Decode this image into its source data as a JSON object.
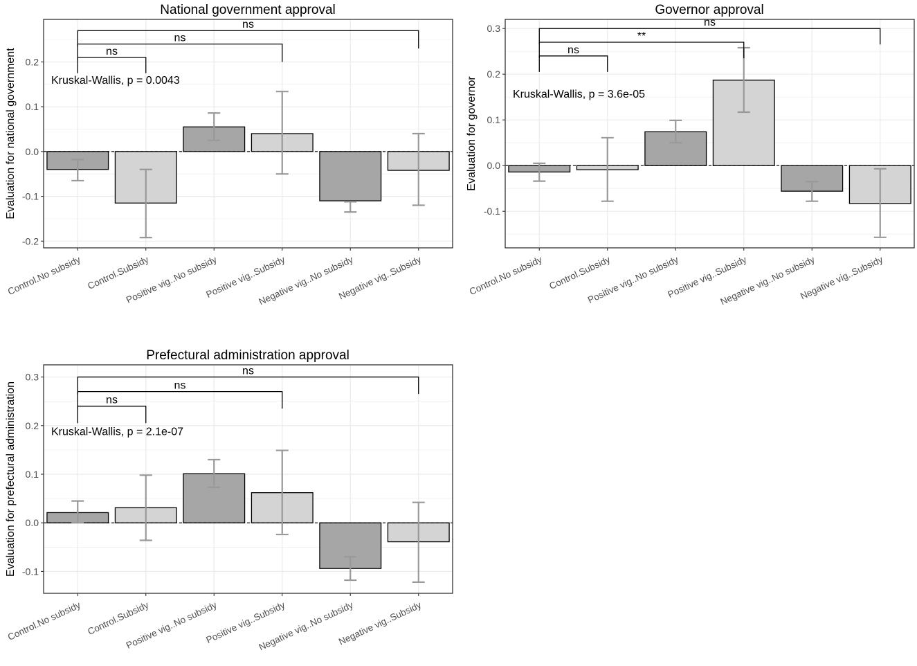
{
  "figure": {
    "colors": {
      "dark_bar": "#a6a6a6",
      "light_bar": "#d4d4d4",
      "error_bar": "#999999",
      "grid": "#ebebeb",
      "text": "#000000",
      "tick_text": "#4d4d4d"
    }
  },
  "chart_data": [
    {
      "type": "bar",
      "title": "National government approval",
      "ylabel": "Evaluation for national government",
      "xlabel": "",
      "categories": [
        "Control.No subsidy",
        "Control.Subsidy",
        "Positive vig..No subsidy",
        "Positive vig..Subsidy",
        "Negative vig..No subsidy",
        "Negative vig..Subsidy"
      ],
      "values": [
        -0.04,
        -0.115,
        0.055,
        0.04,
        -0.11,
        -0.042
      ],
      "error_low": [
        -0.065,
        -0.192,
        0.025,
        -0.05,
        -0.135,
        -0.12
      ],
      "error_high": [
        -0.018,
        -0.04,
        0.086,
        0.134,
        -0.112,
        0.04
      ],
      "bar_shade": [
        "dark",
        "light",
        "dark",
        "light",
        "dark",
        "light"
      ],
      "ylim": [
        -0.215,
        0.295
      ],
      "yticks": [
        -0.2,
        -0.1,
        0.0,
        0.1,
        0.2
      ],
      "ytick_labels": [
        "-0.2",
        "-0.1",
        "0.0",
        "0.1",
        "0.2"
      ],
      "annotation": "Kruskal-Wallis, p = 0.0043",
      "comparisons": [
        {
          "from": 1,
          "to": 2,
          "label": "ns",
          "y": 0.21,
          "left_drop": 0.175,
          "right_drop": 0.175
        },
        {
          "from": 1,
          "to": 4,
          "label": "ns",
          "y": 0.24,
          "left_drop": 0.205,
          "right_drop": 0.2
        },
        {
          "from": 1,
          "to": 6,
          "label": "ns",
          "y": 0.27,
          "left_drop": 0.235,
          "right_drop": 0.23
        }
      ],
      "grid": true
    },
    {
      "type": "bar",
      "title": "Governor approval",
      "ylabel": "Evaluation for governor",
      "xlabel": "",
      "categories": [
        "Control.No subsidy",
        "Control.Subsidy",
        "Positive vig..No subsidy",
        "Positive vig..Subsidy",
        "Negative vig..No subsidy",
        "Negative vig..Subsidy"
      ],
      "values": [
        -0.014,
        -0.009,
        0.074,
        0.187,
        -0.056,
        -0.083
      ],
      "error_low": [
        -0.034,
        -0.078,
        0.05,
        0.117,
        -0.078,
        -0.157
      ],
      "error_high": [
        0.005,
        0.061,
        0.099,
        0.258,
        -0.035,
        -0.007
      ],
      "bar_shade": [
        "dark",
        "light",
        "dark",
        "light",
        "dark",
        "light"
      ],
      "ylim": [
        -0.18,
        0.32
      ],
      "yticks": [
        -0.1,
        0.0,
        0.1,
        0.2,
        0.3
      ],
      "ytick_labels": [
        "-0.1",
        "0.0",
        "0.1",
        "0.2",
        "0.3"
      ],
      "annotation": "Kruskal-Wallis, p = 3.6e-05",
      "comparisons": [
        {
          "from": 1,
          "to": 2,
          "label": "ns",
          "y": 0.24,
          "left_drop": 0.205,
          "right_drop": 0.205
        },
        {
          "from": 1,
          "to": 4,
          "label": "**",
          "y": 0.27,
          "left_drop": 0.235,
          "right_drop": 0.235
        },
        {
          "from": 1,
          "to": 6,
          "label": "ns",
          "y": 0.3,
          "left_drop": 0.265,
          "right_drop": 0.265
        }
      ],
      "grid": true
    },
    {
      "type": "bar",
      "title": "Prefectural administration approval",
      "ylabel": "Evaluation for prefectural administration",
      "xlabel": "",
      "categories": [
        "Control.No subsidy",
        "Control.Subsidy",
        "Positive vig..No subsidy",
        "Positive vig..Subsidy",
        "Negative vig..No subsidy",
        "Negative vig..Subsidy"
      ],
      "values": [
        0.021,
        0.031,
        0.101,
        0.062,
        -0.094,
        -0.039
      ],
      "error_low": [
        0.0,
        -0.036,
        0.073,
        -0.024,
        -0.118,
        -0.122
      ],
      "error_high": [
        0.045,
        0.098,
        0.13,
        0.149,
        -0.07,
        0.042
      ],
      "bar_shade": [
        "dark",
        "light",
        "dark",
        "light",
        "dark",
        "light"
      ],
      "ylim": [
        -0.145,
        0.325
      ],
      "yticks": [
        -0.1,
        0.0,
        0.1,
        0.2,
        0.3
      ],
      "ytick_labels": [
        "-0.1",
        "0.0",
        "0.1",
        "0.2",
        "0.3"
      ],
      "annotation": "Kruskal-Wallis, p = 2.1e-07",
      "comparisons": [
        {
          "from": 1,
          "to": 2,
          "label": "ns",
          "y": 0.24,
          "left_drop": 0.205,
          "right_drop": 0.205
        },
        {
          "from": 1,
          "to": 4,
          "label": "ns",
          "y": 0.27,
          "left_drop": 0.235,
          "right_drop": 0.235
        },
        {
          "from": 1,
          "to": 6,
          "label": "ns",
          "y": 0.3,
          "left_drop": 0.265,
          "right_drop": 0.265
        }
      ],
      "grid": true
    }
  ]
}
